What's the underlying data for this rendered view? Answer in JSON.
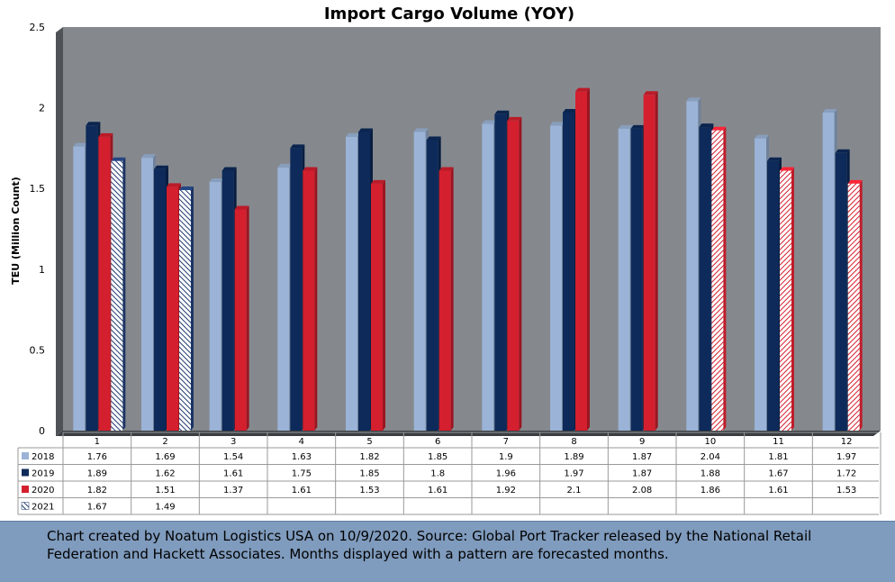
{
  "chart_data": {
    "type": "bar",
    "title": "Import Cargo Volume (YOY)",
    "xlabel": "",
    "ylabel": "TEU (Million Count)",
    "ylim": [
      0,
      2.5
    ],
    "yticks": [
      "0",
      "0.5",
      "1",
      "1.5",
      "2",
      "2.5"
    ],
    "categories": [
      "1",
      "2",
      "3",
      "4",
      "5",
      "6",
      "7",
      "8",
      "9",
      "10",
      "11",
      "12"
    ],
    "grid": false,
    "legend": "data-table-bottom",
    "series": [
      {
        "name": "2018",
        "color": "#9bb3d6",
        "values": [
          1.76,
          1.69,
          1.54,
          1.63,
          1.82,
          1.85,
          1.9,
          1.89,
          1.87,
          2.04,
          1.81,
          1.97
        ],
        "forecast_from": null
      },
      {
        "name": "2019",
        "color": "#0d2a5a",
        "values": [
          1.89,
          1.62,
          1.61,
          1.75,
          1.85,
          1.8,
          1.96,
          1.97,
          1.87,
          1.88,
          1.67,
          1.72
        ],
        "forecast_from": null
      },
      {
        "name": "2020",
        "color": "#d41f2e",
        "values": [
          1.82,
          1.51,
          1.37,
          1.61,
          1.53,
          1.61,
          1.92,
          2.1,
          2.08,
          1.86,
          1.61,
          1.53
        ],
        "forecast_from": 9
      },
      {
        "name": "2021",
        "color": "#1f3a6e",
        "values": [
          1.67,
          1.49,
          null,
          null,
          null,
          null,
          null,
          null,
          null,
          null,
          null,
          null
        ],
        "forecast_from": 0
      }
    ]
  },
  "footer": {
    "line1": "Chart created by Noatum Logistics USA on 10/9/2020. Source: Global Port Tracker released by the National Retail",
    "line2": "Federation and Hackett Associates. Months displayed with a pattern are forecasted months."
  }
}
